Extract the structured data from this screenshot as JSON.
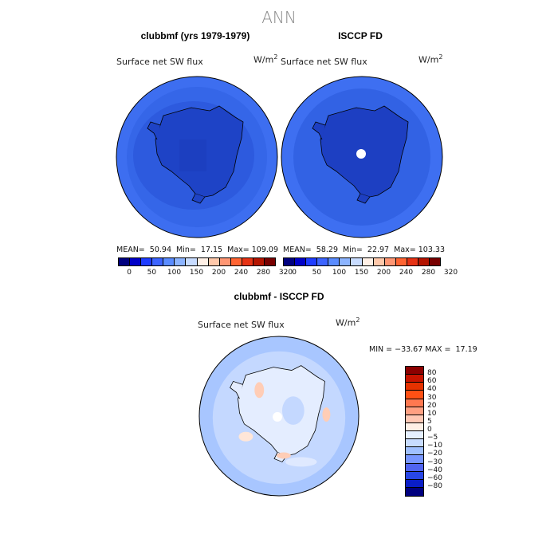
{
  "figure": {
    "title": "ANN"
  },
  "panels": [
    {
      "title": "clubbmf (yrs 1979-1979)",
      "variable": "Surface net SW flux",
      "units_base": "W/m",
      "units_exp": "2",
      "stats": "MEAN=  50.94  Min=  17.15  Max= 109.09"
    },
    {
      "title": "ISCCP FD",
      "variable": "Surface net SW flux",
      "units_base": "W/m",
      "units_exp": "2",
      "stats": "MEAN=  58.29  Min=  22.97  Max= 103.33"
    },
    {
      "title": "clubbmf - ISCCP FD",
      "variable": "Surface net SW flux",
      "units_base": "W/m",
      "units_exp": "2",
      "stats": "MIN = −33.67 MAX =  17.19"
    }
  ],
  "colorbar_abs": {
    "ticks": [
      "0",
      "50",
      "100",
      "150",
      "200",
      "240",
      "280",
      "320"
    ],
    "colors": [
      "#00007f",
      "#0000c8",
      "#1e3cff",
      "#3c64ff",
      "#5a8cff",
      "#8cb4ff",
      "#c8dcff",
      "#fff0e6",
      "#ffc8aa",
      "#ff9673",
      "#ff6432",
      "#e63214",
      "#b41400",
      "#780000"
    ]
  },
  "colorbar_diff": {
    "ticks": [
      "80",
      "60",
      "40",
      "30",
      "20",
      "10",
      "5",
      "0",
      "−5",
      "−10",
      "−20",
      "−30",
      "−40",
      "−60",
      "−80"
    ],
    "colors": [
      "#8c0000",
      "#c81400",
      "#e63200",
      "#ff5014",
      "#ff7850",
      "#ffa082",
      "#ffc8b4",
      "#fff0e6",
      "#e6f0ff",
      "#c8dcff",
      "#a0c0ff",
      "#7896ff",
      "#5064f0",
      "#2846e6",
      "#0a1ec8",
      "#00007f"
    ]
  },
  "map_colors": {
    "ocean_model": "#2f5fdf",
    "ocean_model_outer": "#3d6ef0",
    "continent_model": "#1f45c8",
    "ocean_obs": "#3161e3",
    "continent_obs": "#1e40c4",
    "diff_base": "#c4d8ff",
    "diff_light": "#e2ecff",
    "diff_mid": "#9cbcff",
    "diff_pos": "#ffd2bc"
  }
}
